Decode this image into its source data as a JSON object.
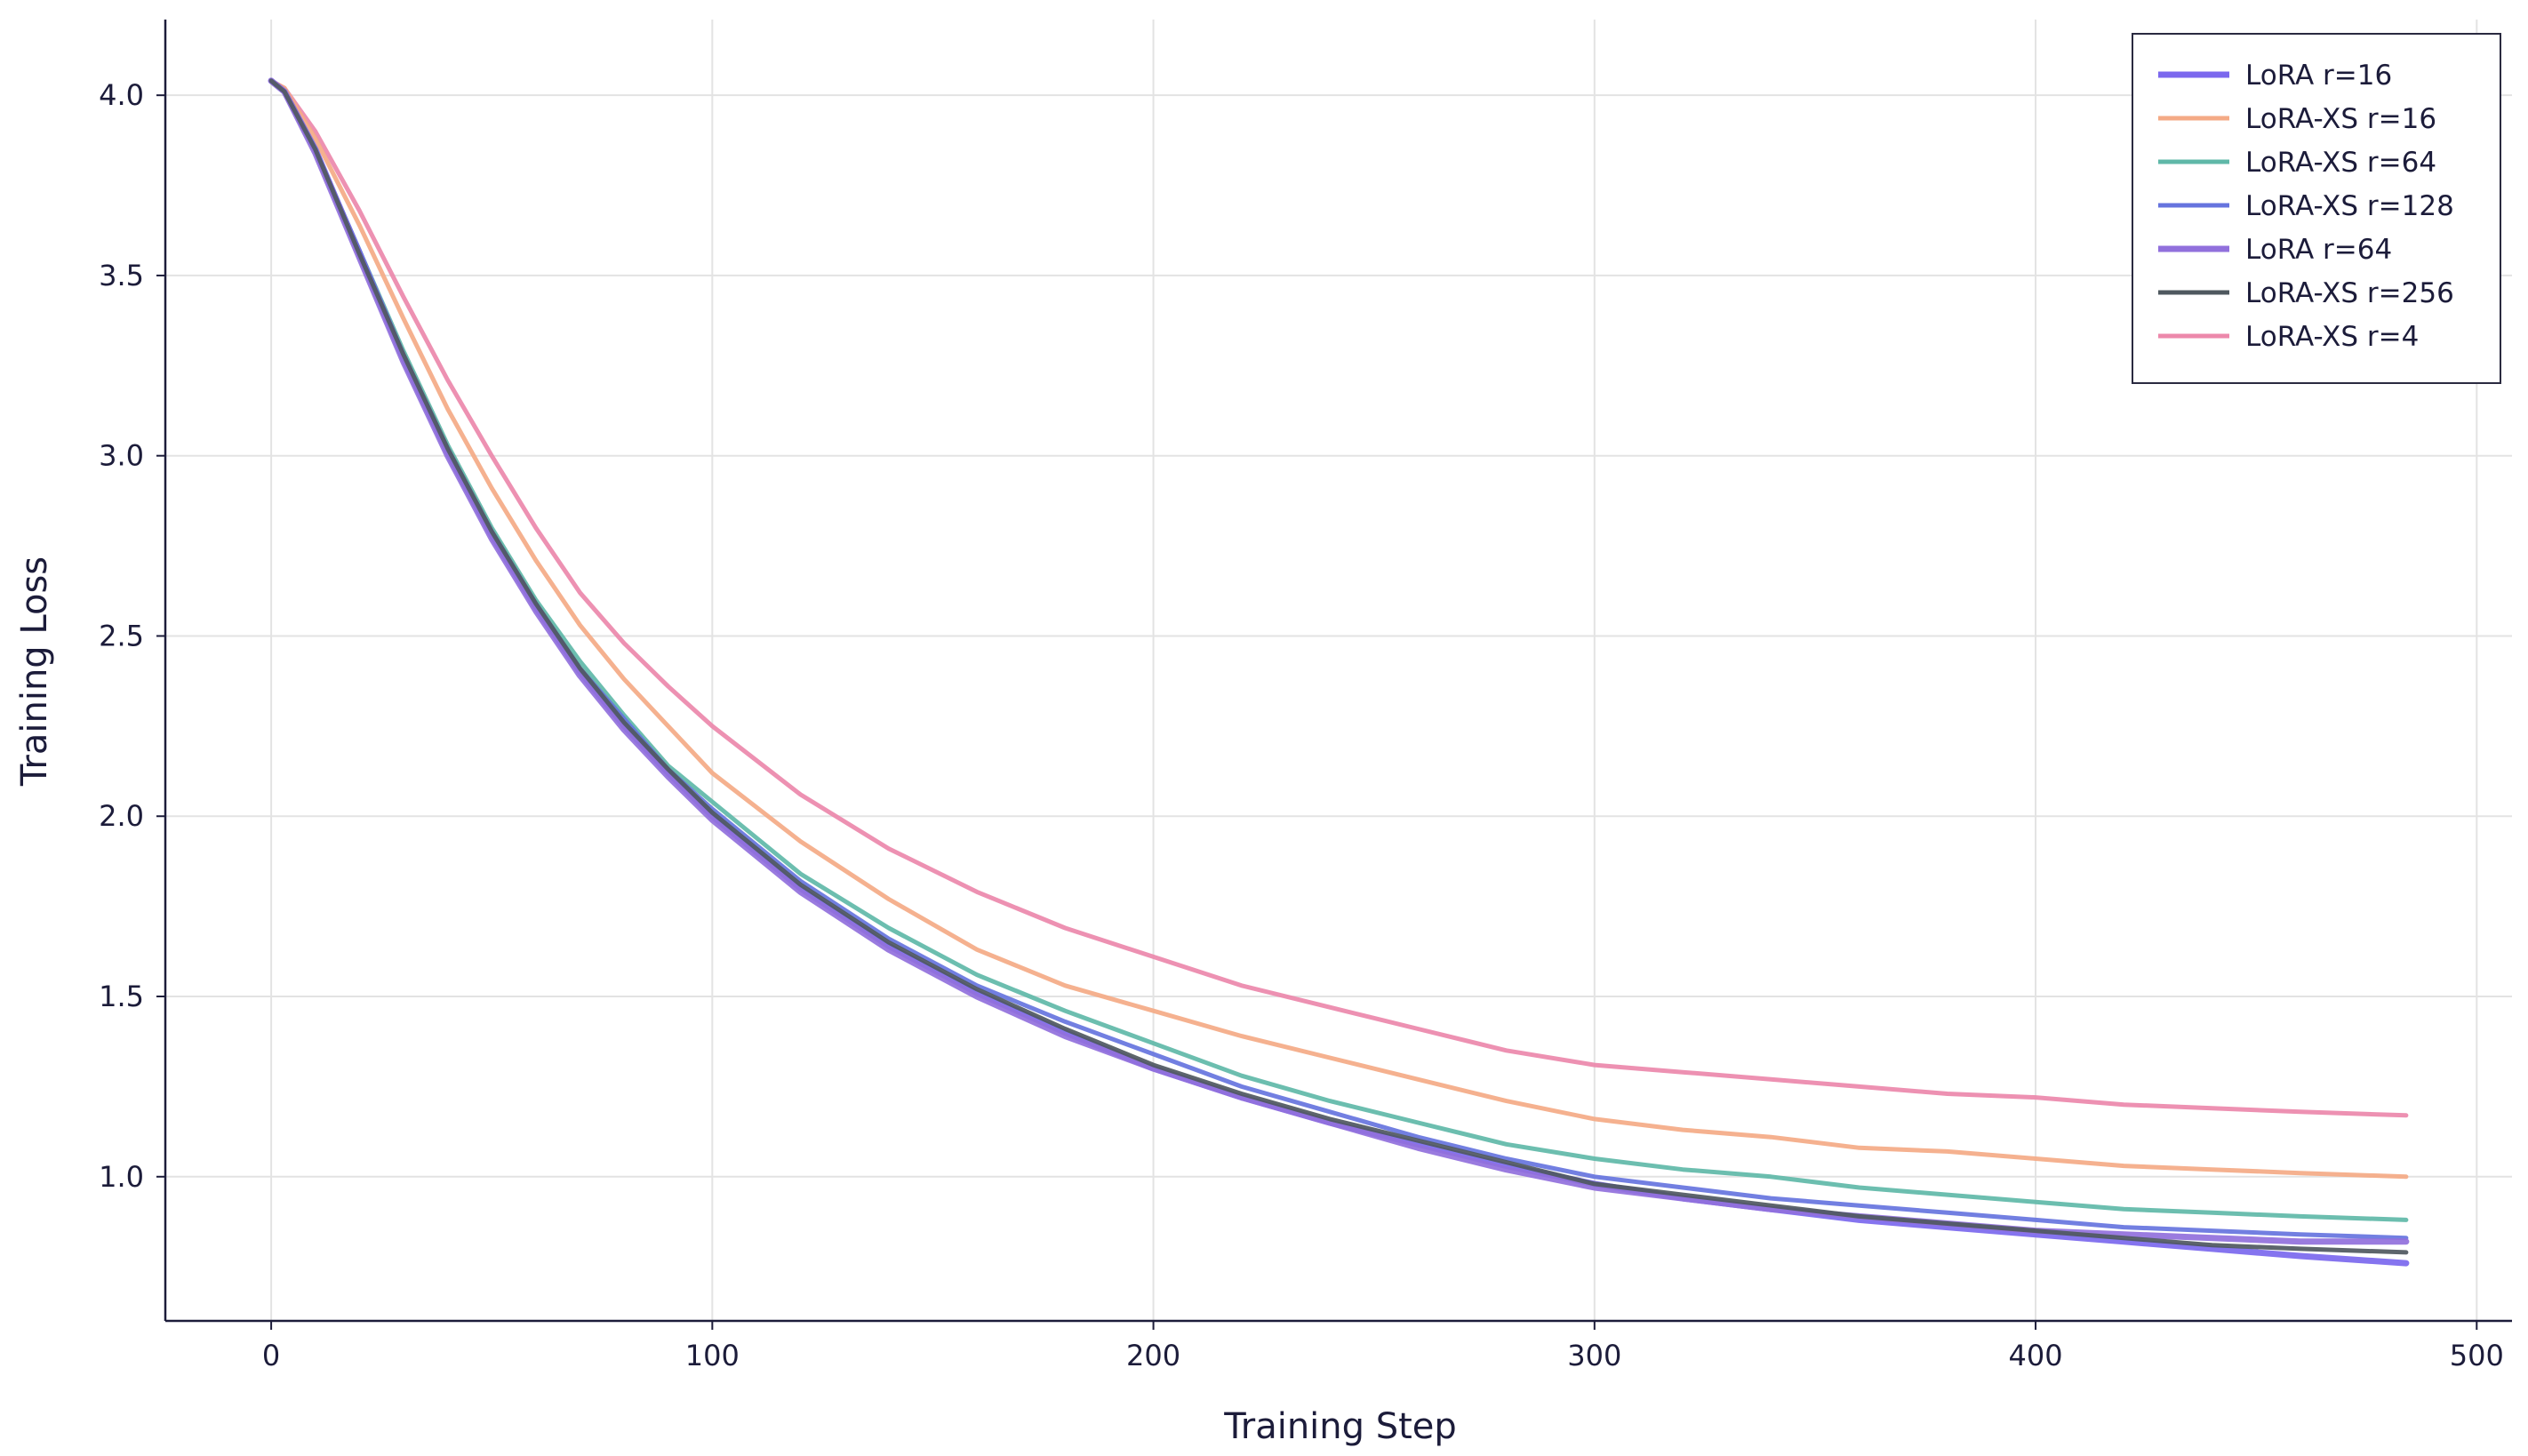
{
  "chart_data": {
    "type": "line",
    "title": "",
    "xlabel": "Training Step",
    "ylabel": "Training Loss",
    "xlim": [
      -24,
      508
    ],
    "ylim": [
      0.6,
      4.21
    ],
    "xticks": [
      0,
      100,
      200,
      300,
      400,
      500
    ],
    "yticks": [
      1.0,
      1.5,
      2.0,
      2.5,
      3.0,
      3.5,
      4.0
    ],
    "xtick_labels": [
      "0",
      "100",
      "200",
      "300",
      "400",
      "500"
    ],
    "ytick_labels": [
      "1.0",
      "1.5",
      "2.0",
      "2.5",
      "3.0",
      "3.5",
      "4.0"
    ],
    "grid": true,
    "legend_position": "top-right",
    "x": [
      0,
      3,
      10,
      20,
      30,
      40,
      50,
      60,
      70,
      80,
      90,
      100,
      120,
      140,
      160,
      180,
      200,
      220,
      240,
      260,
      280,
      300,
      320,
      340,
      360,
      380,
      400,
      420,
      440,
      460,
      484
    ],
    "series": [
      {
        "name": "LoRA r=16",
        "color": "#7b68ee",
        "width": 7,
        "values": [
          4.04,
          4.01,
          3.85,
          3.56,
          3.27,
          3.01,
          2.78,
          2.58,
          2.4,
          2.25,
          2.12,
          2.0,
          1.8,
          1.64,
          1.51,
          1.4,
          1.3,
          1.22,
          1.15,
          1.09,
          1.03,
          0.98,
          0.94,
          0.91,
          0.88,
          0.86,
          0.84,
          0.82,
          0.8,
          0.78,
          0.76
        ]
      },
      {
        "name": "LoRA-XS r=16",
        "color": "#f4aa85",
        "width": 5,
        "values": [
          4.04,
          4.02,
          3.88,
          3.64,
          3.38,
          3.13,
          2.91,
          2.71,
          2.53,
          2.38,
          2.25,
          2.12,
          1.93,
          1.77,
          1.63,
          1.53,
          1.46,
          1.39,
          1.33,
          1.27,
          1.21,
          1.16,
          1.13,
          1.11,
          1.08,
          1.07,
          1.05,
          1.03,
          1.02,
          1.01,
          1.0
        ]
      },
      {
        "name": "LoRA-XS r=64",
        "color": "#5fb8a8",
        "width": 5,
        "values": [
          4.04,
          4.01,
          3.85,
          3.57,
          3.29,
          3.03,
          2.8,
          2.6,
          2.43,
          2.28,
          2.14,
          2.04,
          1.84,
          1.69,
          1.56,
          1.46,
          1.37,
          1.28,
          1.21,
          1.15,
          1.09,
          1.05,
          1.02,
          1.0,
          0.97,
          0.95,
          0.93,
          0.91,
          0.9,
          0.89,
          0.88
        ]
      },
      {
        "name": "LoRA-XS r=128",
        "color": "#6674de",
        "width": 5,
        "values": [
          4.04,
          4.01,
          3.85,
          3.57,
          3.28,
          3.02,
          2.79,
          2.59,
          2.41,
          2.27,
          2.13,
          2.02,
          1.82,
          1.66,
          1.53,
          1.43,
          1.34,
          1.25,
          1.18,
          1.11,
          1.05,
          1.0,
          0.97,
          0.94,
          0.92,
          0.9,
          0.88,
          0.86,
          0.85,
          0.84,
          0.83
        ]
      },
      {
        "name": "LoRA r=64",
        "color": "#9170dc",
        "width": 7,
        "values": [
          4.04,
          4.01,
          3.84,
          3.55,
          3.26,
          3.0,
          2.77,
          2.57,
          2.39,
          2.24,
          2.11,
          1.99,
          1.79,
          1.63,
          1.5,
          1.39,
          1.3,
          1.22,
          1.15,
          1.08,
          1.02,
          0.97,
          0.94,
          0.91,
          0.89,
          0.87,
          0.85,
          0.84,
          0.83,
          0.82,
          0.82
        ]
      },
      {
        "name": "LoRA-XS r=256",
        "color": "#4f585f",
        "width": 5,
        "values": [
          4.04,
          4.01,
          3.85,
          3.56,
          3.28,
          3.02,
          2.79,
          2.59,
          2.41,
          2.26,
          2.13,
          2.01,
          1.81,
          1.65,
          1.52,
          1.41,
          1.31,
          1.23,
          1.16,
          1.1,
          1.04,
          0.98,
          0.95,
          0.92,
          0.89,
          0.87,
          0.85,
          0.83,
          0.81,
          0.8,
          0.79
        ]
      },
      {
        "name": "LoRA-XS r=4",
        "color": "#ec88ab",
        "width": 5,
        "values": [
          4.04,
          4.02,
          3.9,
          3.68,
          3.44,
          3.21,
          3.0,
          2.8,
          2.62,
          2.48,
          2.36,
          2.25,
          2.06,
          1.91,
          1.79,
          1.69,
          1.61,
          1.53,
          1.47,
          1.41,
          1.35,
          1.31,
          1.29,
          1.27,
          1.25,
          1.23,
          1.22,
          1.2,
          1.19,
          1.18,
          1.17
        ]
      }
    ]
  }
}
